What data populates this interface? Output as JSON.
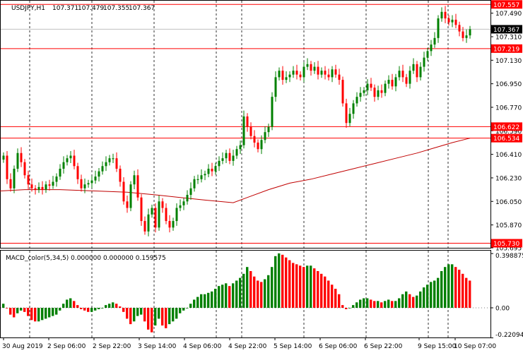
{
  "main": {
    "header": {
      "symbol_label": "USDJPY,H1",
      "ohlc": [
        "107.371",
        "107.479",
        "107.355",
        "107.367"
      ]
    },
    "price_axis_ticks": [
      "107.490",
      "107.310",
      "107.130",
      "106.950",
      "106.770",
      "106.590",
      "106.410",
      "106.230",
      "106.050",
      "105.870",
      "105.695"
    ],
    "current_price": {
      "label": "107.367",
      "value": 107.367
    },
    "levels": [
      {
        "label": "107.557",
        "value": 107.557
      },
      {
        "label": "107.219",
        "value": 107.219
      },
      {
        "label": "106.622",
        "value": 106.622
      },
      {
        "label": "106.534",
        "value": 106.534
      },
      {
        "label": "105.730",
        "value": 105.73
      }
    ],
    "time_labels": [
      "30 Aug 2019",
      "2 Sep 06:00",
      "2 Sep 22:00",
      "3 Sep 14:00",
      "4 Sep 06:00",
      "4 Sep 22:00",
      "5 Sep 14:00",
      "6 Sep 06:00",
      "6 Sep 22:00",
      "9 Sep 15:00",
      "10 Sep 07:00"
    ]
  },
  "macd": {
    "header_label": "MACD_color(5,34,5) 0.000000 0.000000 0.159575",
    "ticks": [
      "0.398875",
      "0.00",
      "-0.220944"
    ]
  },
  "colors": {
    "bull": "#008000",
    "bear": "#ff0000",
    "level_line": "#ff0000",
    "ma_line": "#c00000",
    "grid": "#000000",
    "current_line": "#c0c0c0"
  },
  "chart_data": [
    {
      "type": "candlestick",
      "title": "USDJPY,H1",
      "ylim": [
        105.695,
        107.58
      ],
      "moving_average_series": [
        [
          0,
          106.13
        ],
        [
          35,
          106.14
        ],
        [
          85,
          106.14
        ],
        [
          135,
          106.13
        ],
        [
          180,
          106.12
        ],
        [
          220,
          106.1
        ],
        [
          255,
          106.08
        ],
        [
          290,
          106.06
        ],
        [
          330,
          106.04
        ],
        [
          350,
          106.08
        ],
        [
          380,
          106.14
        ],
        [
          410,
          106.19
        ],
        [
          440,
          106.22
        ],
        [
          470,
          106.26
        ],
        [
          500,
          106.3
        ],
        [
          530,
          106.34
        ],
        [
          560,
          106.38
        ],
        [
          590,
          106.42
        ],
        [
          615,
          106.46
        ],
        [
          640,
          106.5
        ],
        [
          665,
          106.534
        ]
      ],
      "close_series": [
        [
          5,
          106.4
        ],
        [
          10,
          106.22
        ],
        [
          15,
          106.15
        ],
        [
          20,
          106.3
        ],
        [
          25,
          106.42
        ],
        [
          30,
          106.35
        ],
        [
          35,
          106.25
        ],
        [
          40,
          106.18
        ],
        [
          45,
          106.15
        ],
        [
          50,
          106.14
        ],
        [
          55,
          106.16
        ],
        [
          60,
          106.14
        ],
        [
          65,
          106.18
        ],
        [
          70,
          106.17
        ],
        [
          75,
          106.2
        ],
        [
          80,
          106.24
        ],
        [
          85,
          106.3
        ],
        [
          90,
          106.35
        ],
        [
          95,
          106.38
        ],
        [
          100,
          106.4
        ],
        [
          105,
          106.32
        ],
        [
          110,
          106.22
        ],
        [
          115,
          106.15
        ],
        [
          120,
          106.18
        ],
        [
          125,
          106.19
        ],
        [
          130,
          106.21
        ],
        [
          135,
          106.24
        ],
        [
          140,
          106.28
        ],
        [
          145,
          106.32
        ],
        [
          150,
          106.35
        ],
        [
          155,
          106.38
        ],
        [
          160,
          106.38
        ],
        [
          165,
          106.3
        ],
        [
          170,
          106.2
        ],
        [
          175,
          106.05
        ],
        [
          180,
          106.0
        ],
        [
          185,
          106.18
        ],
        [
          190,
          106.25
        ],
        [
          195,
          106.08
        ],
        [
          200,
          105.9
        ],
        [
          205,
          105.82
        ],
        [
          210,
          105.95
        ],
        [
          215,
          106.0
        ],
        [
          220,
          105.85
        ],
        [
          225,
          106.05
        ],
        [
          230,
          106.0
        ],
        [
          235,
          105.9
        ],
        [
          240,
          105.85
        ],
        [
          245,
          105.9
        ],
        [
          250,
          106.0
        ],
        [
          255,
          106.02
        ],
        [
          260,
          106.05
        ],
        [
          265,
          106.1
        ],
        [
          270,
          106.15
        ],
        [
          275,
          106.22
        ],
        [
          280,
          106.22
        ],
        [
          285,
          106.25
        ],
        [
          290,
          106.26
        ],
        [
          295,
          106.3
        ],
        [
          300,
          106.28
        ],
        [
          305,
          106.32
        ],
        [
          310,
          106.36
        ],
        [
          315,
          106.38
        ],
        [
          320,
          106.42
        ],
        [
          325,
          106.36
        ],
        [
          330,
          106.4
        ],
        [
          335,
          106.45
        ],
        [
          340,
          106.48
        ],
        [
          345,
          106.7
        ],
        [
          350,
          106.62
        ],
        [
          355,
          106.55
        ],
        [
          360,
          106.5
        ],
        [
          365,
          106.45
        ],
        [
          370,
          106.52
        ],
        [
          375,
          106.58
        ],
        [
          380,
          106.62
        ],
        [
          385,
          106.85
        ],
        [
          390,
          107.0
        ],
        [
          395,
          107.05
        ],
        [
          400,
          106.98
        ],
        [
          405,
          107.0
        ],
        [
          410,
          107.02
        ],
        [
          415,
          107.05
        ],
        [
          420,
          107.02
        ],
        [
          425,
          107.0
        ],
        [
          430,
          107.08
        ],
        [
          435,
          107.1
        ],
        [
          440,
          107.05
        ],
        [
          445,
          107.08
        ],
        [
          450,
          107.02
        ],
        [
          455,
          107.05
        ],
        [
          460,
          107.02
        ],
        [
          465,
          107.0
        ],
        [
          470,
          107.06
        ],
        [
          475,
          107.02
        ],
        [
          480,
          106.98
        ],
        [
          485,
          106.8
        ],
        [
          490,
          106.65
        ],
        [
          495,
          106.72
        ],
        [
          500,
          106.8
        ],
        [
          505,
          106.85
        ],
        [
          510,
          106.88
        ],
        [
          515,
          106.9
        ],
        [
          520,
          106.95
        ],
        [
          525,
          106.92
        ],
        [
          530,
          106.85
        ],
        [
          535,
          106.9
        ],
        [
          540,
          106.88
        ],
        [
          545,
          106.95
        ],
        [
          550,
          106.98
        ],
        [
          555,
          106.93
        ],
        [
          560,
          107.0
        ],
        [
          565,
          107.05
        ],
        [
          570,
          107.0
        ],
        [
          575,
          106.95
        ],
        [
          580,
          107.05
        ],
        [
          585,
          107.1
        ],
        [
          590,
          107.0
        ],
        [
          595,
          107.08
        ],
        [
          600,
          107.15
        ],
        [
          605,
          107.2
        ],
        [
          610,
          107.25
        ],
        [
          615,
          107.3
        ],
        [
          620,
          107.45
        ],
        [
          625,
          107.5
        ],
        [
          630,
          107.45
        ],
        [
          635,
          107.42
        ],
        [
          640,
          107.44
        ],
        [
          645,
          107.4
        ],
        [
          650,
          107.35
        ],
        [
          655,
          107.3
        ],
        [
          660,
          107.32
        ],
        [
          665,
          107.367
        ]
      ]
    },
    {
      "type": "bar",
      "title": "MACD_color(5,34,5)",
      "ylim": [
        -0.220944,
        0.41
      ],
      "x_start": 5,
      "x_step": 5,
      "values": [
        0.03,
        0.0,
        -0.05,
        -0.07,
        -0.04,
        -0.02,
        -0.03,
        -0.06,
        -0.09,
        -0.1,
        -0.1,
        -0.09,
        -0.08,
        -0.07,
        -0.06,
        -0.05,
        -0.02,
        0.03,
        0.06,
        0.07,
        0.05,
        0.02,
        -0.01,
        -0.02,
        -0.03,
        -0.03,
        -0.02,
        -0.01,
        0.0,
        0.02,
        0.03,
        0.04,
        0.03,
        0.01,
        -0.03,
        -0.08,
        -0.12,
        -0.1,
        -0.06,
        -0.05,
        -0.1,
        -0.16,
        -0.18,
        -0.13,
        -0.08,
        -0.13,
        -0.15,
        -0.12,
        -0.1,
        -0.08,
        -0.04,
        -0.02,
        0.0,
        0.03,
        0.06,
        0.08,
        0.1,
        0.1,
        0.11,
        0.12,
        0.14,
        0.16,
        0.17,
        0.18,
        0.16,
        0.18,
        0.2,
        0.22,
        0.25,
        0.3,
        0.27,
        0.23,
        0.2,
        0.19,
        0.21,
        0.24,
        0.3,
        0.38,
        0.4,
        0.39,
        0.37,
        0.35,
        0.33,
        0.32,
        0.31,
        0.3,
        0.31,
        0.31,
        0.29,
        0.27,
        0.25,
        0.23,
        0.2,
        0.17,
        0.14,
        0.1,
        0.02,
        -0.01,
        0.0,
        0.02,
        0.04,
        0.06,
        0.07,
        0.07,
        0.06,
        0.05,
        0.05,
        0.04,
        0.05,
        0.06,
        0.05,
        0.05,
        0.07,
        0.1,
        0.12,
        0.1,
        0.08,
        0.09,
        0.12,
        0.15,
        0.17,
        0.19,
        0.2,
        0.22,
        0.27,
        0.3,
        0.32,
        0.32,
        0.3,
        0.28,
        0.25,
        0.22,
        0.2
      ]
    }
  ]
}
